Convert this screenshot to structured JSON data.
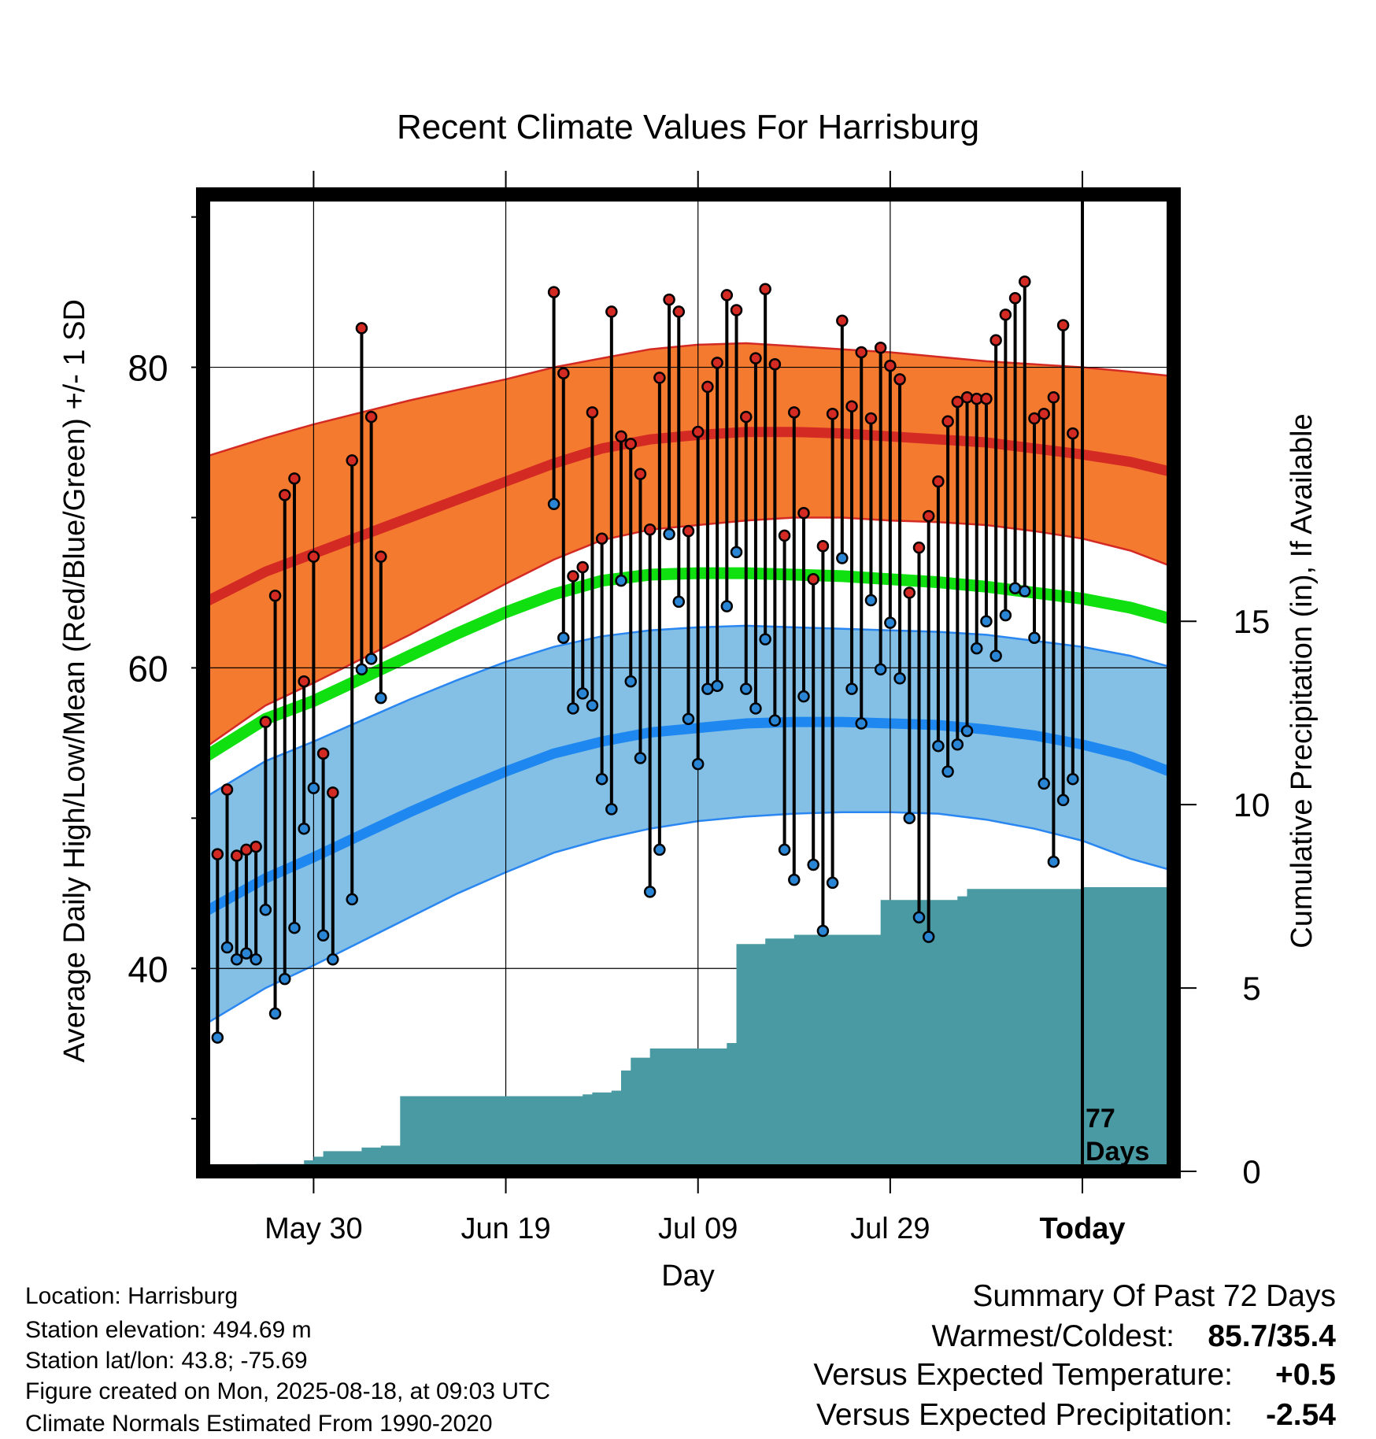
{
  "chart_data": {
    "type": "line",
    "title": "Recent Climate Values For Harrisburg",
    "xlabel": "Day",
    "ylabel_left": "Average Daily High/Low/Mean (Red/Blue/Green) +/- 1 SD",
    "ylabel_right": "Cumulative Precipitation (in), If Available",
    "x_ticks": [
      "May 30",
      "Jun 19",
      "Jul 09",
      "Jul 29",
      "Today"
    ],
    "x_tick_day": [
      0,
      20,
      40,
      60,
      80
    ],
    "xlim": [
      -11.5,
      89.5
    ],
    "y_ticks_left": [
      "40",
      "60",
      "80"
    ],
    "y_tick_values_left": [
      40,
      60,
      80
    ],
    "ylim_left": [
      26.5,
      91.5
    ],
    "y_ticks_right": [
      "0",
      "5",
      "10",
      "15"
    ],
    "y_tick_values_right": [
      0,
      5,
      10,
      15
    ],
    "ylim_right_bottom": 0,
    "today_day": 80,
    "today_marker_text": [
      "77",
      "Days"
    ],
    "normals": {
      "x": [
        -11.5,
        -5,
        0,
        5,
        10,
        15,
        20,
        25,
        30,
        35,
        40,
        45,
        50,
        55,
        60,
        65,
        70,
        75,
        80,
        85,
        89.5
      ],
      "high_upper": [
        74.0,
        75.3,
        76.2,
        77.0,
        77.8,
        78.5,
        79.2,
        80.0,
        80.6,
        81.2,
        81.5,
        81.6,
        81.4,
        81.2,
        81.0,
        80.7,
        80.4,
        80.2,
        80.0,
        79.7,
        79.4
      ],
      "high_mean": [
        64.3,
        66.4,
        67.6,
        68.8,
        70.0,
        71.2,
        72.4,
        73.6,
        74.6,
        75.2,
        75.5,
        75.7,
        75.7,
        75.6,
        75.4,
        75.2,
        75.0,
        74.6,
        74.2,
        73.7,
        73.0
      ],
      "high_lower": [
        54.6,
        57.5,
        59.0,
        60.6,
        62.2,
        63.9,
        65.6,
        67.2,
        68.5,
        69.2,
        69.5,
        69.8,
        70.0,
        70.0,
        69.8,
        69.7,
        69.5,
        69.1,
        68.6,
        67.8,
        66.7
      ],
      "mean": [
        54.0,
        56.6,
        57.8,
        59.3,
        60.8,
        62.3,
        63.7,
        64.9,
        65.8,
        66.2,
        66.3,
        66.3,
        66.2,
        66.1,
        65.9,
        65.7,
        65.4,
        65.0,
        64.6,
        64.0,
        63.2
      ],
      "low_upper": [
        51.3,
        53.8,
        55.1,
        56.5,
        57.9,
        59.2,
        60.4,
        61.4,
        62.1,
        62.5,
        62.7,
        62.8,
        62.7,
        62.6,
        62.5,
        62.4,
        62.2,
        61.8,
        61.4,
        60.8,
        60.0
      ],
      "low_mean": [
        43.7,
        46.0,
        47.4,
        48.9,
        50.4,
        51.8,
        53.1,
        54.3,
        55.1,
        55.7,
        56.0,
        56.3,
        56.4,
        56.4,
        56.3,
        56.2,
        55.9,
        55.5,
        54.9,
        54.1,
        53.0
      ],
      "low_lower": [
        36.2,
        38.7,
        40.2,
        41.8,
        43.4,
        45.0,
        46.4,
        47.7,
        48.6,
        49.3,
        49.8,
        50.1,
        50.3,
        50.4,
        50.4,
        50.3,
        49.9,
        49.3,
        48.5,
        47.3,
        46.5
      ]
    },
    "daily_series": [
      {
        "name": "High",
        "color": "#d42a24"
      },
      {
        "name": "Low",
        "color": "#2a86d4"
      }
    ],
    "daily": [
      {
        "day": -10,
        "high": 47.6,
        "low": 35.4
      },
      {
        "day": -9,
        "high": 51.9,
        "low": 41.4
      },
      {
        "day": -8,
        "high": 47.5,
        "low": 40.6
      },
      {
        "day": -7,
        "high": 47.9,
        "low": 41.0
      },
      {
        "day": -6,
        "high": 48.1,
        "low": 40.6
      },
      {
        "day": -5,
        "high": 56.4,
        "low": 43.9
      },
      {
        "day": -4,
        "high": 64.8,
        "low": 37.0
      },
      {
        "day": -3,
        "high": 71.5,
        "low": 39.3
      },
      {
        "day": -2,
        "high": 72.6,
        "low": 42.7
      },
      {
        "day": -1,
        "high": 59.1,
        "low": 49.3
      },
      {
        "day": 0,
        "high": 67.4,
        "low": 52.0
      },
      {
        "day": 1,
        "high": 54.3,
        "low": 42.2
      },
      {
        "day": 2,
        "high": 51.7,
        "low": 40.6
      },
      {
        "day": 4,
        "high": 73.8,
        "low": 44.6
      },
      {
        "day": 5,
        "high": 82.6,
        "low": 59.9
      },
      {
        "day": 6,
        "high": 76.7,
        "low": 60.6
      },
      {
        "day": 7,
        "high": 67.4,
        "low": 58.0
      },
      {
        "day": 25,
        "high": 85.0,
        "low": 70.9
      },
      {
        "day": 26,
        "high": 79.6,
        "low": 62.0
      },
      {
        "day": 27,
        "high": 66.1,
        "low": 57.3
      },
      {
        "day": 28,
        "high": 66.7,
        "low": 58.3
      },
      {
        "day": 29,
        "high": 77.0,
        "low": 57.5
      },
      {
        "day": 30,
        "high": 68.6,
        "low": 52.6
      },
      {
        "day": 31,
        "high": 83.7,
        "low": 50.6
      },
      {
        "day": 32,
        "high": 75.4,
        "low": 65.8
      },
      {
        "day": 33,
        "high": 74.9,
        "low": 59.1
      },
      {
        "day": 34,
        "high": 72.9,
        "low": 54.0
      },
      {
        "day": 35,
        "high": 69.2,
        "low": 45.1
      },
      {
        "day": 36,
        "high": 79.3,
        "low": 47.9
      },
      {
        "day": 37,
        "high": 84.5,
        "low": 68.9
      },
      {
        "day": 38,
        "high": 83.7,
        "low": 64.4
      },
      {
        "day": 39,
        "high": 69.1,
        "low": 56.6
      },
      {
        "day": 40,
        "high": 75.7,
        "low": 53.6
      },
      {
        "day": 41,
        "high": 78.7,
        "low": 58.6
      },
      {
        "day": 42,
        "high": 80.3,
        "low": 58.8
      },
      {
        "day": 43,
        "high": 84.8,
        "low": 64.1
      },
      {
        "day": 44,
        "high": 83.8,
        "low": 67.7
      },
      {
        "day": 45,
        "high": 76.7,
        "low": 58.6
      },
      {
        "day": 46,
        "high": 80.6,
        "low": 57.3
      },
      {
        "day": 47,
        "high": 85.2,
        "low": 61.9
      },
      {
        "day": 48,
        "high": 80.2,
        "low": 56.5
      },
      {
        "day": 49,
        "high": 68.8,
        "low": 47.9
      },
      {
        "day": 50,
        "high": 77.0,
        "low": 45.9
      },
      {
        "day": 51,
        "high": 70.3,
        "low": 58.1
      },
      {
        "day": 52,
        "high": 65.9,
        "low": 46.9
      },
      {
        "day": 53,
        "high": 68.1,
        "low": 42.5
      },
      {
        "day": 54,
        "high": 76.9,
        "low": 45.7
      },
      {
        "day": 55,
        "high": 83.1,
        "low": 67.3
      },
      {
        "day": 56,
        "high": 77.4,
        "low": 58.6
      },
      {
        "day": 57,
        "high": 81.0,
        "low": 56.3
      },
      {
        "day": 58,
        "high": 76.6,
        "low": 64.5
      },
      {
        "day": 59,
        "high": 81.3,
        "low": 59.9
      },
      {
        "day": 60,
        "high": 80.1,
        "low": 63.0
      },
      {
        "day": 61,
        "high": 79.2,
        "low": 59.3
      },
      {
        "day": 62,
        "high": 65.0,
        "low": 50.0
      },
      {
        "day": 63,
        "high": 68.0,
        "low": 43.4
      },
      {
        "day": 64,
        "high": 70.1,
        "low": 42.1
      },
      {
        "day": 65,
        "high": 72.4,
        "low": 54.8
      },
      {
        "day": 66,
        "high": 76.4,
        "low": 53.1
      },
      {
        "day": 67,
        "high": 77.7,
        "low": 54.9
      },
      {
        "day": 68,
        "high": 78.0,
        "low": 55.8
      },
      {
        "day": 69,
        "high": 77.9,
        "low": 61.3
      },
      {
        "day": 70,
        "high": 77.9,
        "low": 63.1
      },
      {
        "day": 71,
        "high": 81.8,
        "low": 60.8
      },
      {
        "day": 72,
        "high": 83.5,
        "low": 63.5
      },
      {
        "day": 73,
        "high": 84.6,
        "low": 65.3
      },
      {
        "day": 74,
        "high": 85.7,
        "low": 65.1
      },
      {
        "day": 75,
        "high": 76.6,
        "low": 62.0
      },
      {
        "day": 76,
        "high": 76.9,
        "low": 52.3
      },
      {
        "day": 77,
        "high": 78.0,
        "low": 47.1
      },
      {
        "day": 78,
        "high": 82.8,
        "low": 51.2
      },
      {
        "day": 79,
        "high": 75.6,
        "low": 52.6
      }
    ],
    "precipitation": {
      "name": "Cumulative Precipitation",
      "color": "#4a9aa4",
      "x": [
        -10,
        -7,
        -6,
        -2,
        -1,
        0,
        1,
        2,
        4,
        5,
        7,
        8,
        9,
        10,
        20,
        25,
        28,
        29,
        30,
        31,
        32,
        33,
        34,
        35,
        36,
        40,
        42,
        43,
        44,
        45,
        47,
        48,
        49,
        50,
        53,
        58,
        59,
        60,
        61,
        66,
        67,
        68,
        71,
        79,
        80,
        89.5
      ],
      "y": [
        0.1,
        0.1,
        0.2,
        0.2,
        0.3,
        0.4,
        0.55,
        0.55,
        0.55,
        0.65,
        0.7,
        0.7,
        2.05,
        2.05,
        2.05,
        2.05,
        2.1,
        2.15,
        2.15,
        2.2,
        2.75,
        3.1,
        3.1,
        3.35,
        3.35,
        3.35,
        3.35,
        3.5,
        6.2,
        6.2,
        6.35,
        6.35,
        6.35,
        6.45,
        6.45,
        6.45,
        7.4,
        7.4,
        7.4,
        7.4,
        7.5,
        7.7,
        7.7,
        7.7,
        7.75,
        7.75
      ]
    }
  },
  "footer": {
    "location": "Location: Harrisburg",
    "elevation": "Station elevation: 494.69 m",
    "latlon": "Station lat/lon: 43.8; -75.69",
    "created": "Figure created on Mon, 2025-08-18, at 09:03 UTC",
    "normals": "Climate Normals Estimated From 1990-2020"
  },
  "summary": {
    "title": "Summary Of Past 72 Days",
    "warm_cold_label": "Warmest/Coldest:",
    "warm_cold_value": "85.7/35.4",
    "temp_label": "Versus Expected Temperature:",
    "temp_value": "+0.5",
    "temp_color": "#cc2a2a",
    "precip_label": "Versus Expected Precipitation:",
    "precip_value": "-2.54",
    "precip_color": "#a0522d"
  },
  "colors": {
    "high_band": "#f47a30",
    "high_band_edge": "#d42a24",
    "high_mean": "#d42a24",
    "mean": "#10e010",
    "low_band": "#84c0e6",
    "low_band_edge": "#2a86f0",
    "low_mean": "#1e88f0"
  }
}
